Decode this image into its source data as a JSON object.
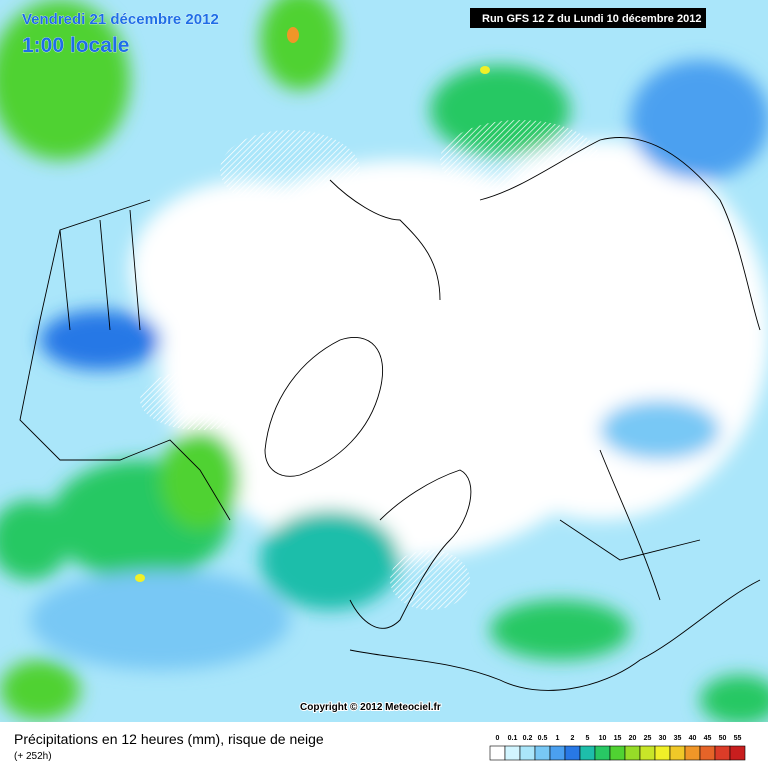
{
  "header": {
    "date": "Vendredi 21 décembre 2012",
    "time": "1:00 locale",
    "run": "Run GFS 12 Z du Lundi 10 décembre 2012"
  },
  "copyright": "Copyright © 2012 Meteociel.fr",
  "footer": {
    "title": "Précipitations en 12 heures (mm), risque de neige",
    "lead": "(+ 252h)"
  },
  "legend": {
    "labels": [
      0,
      0.1,
      0.2,
      0.5,
      1,
      2,
      5,
      10,
      15,
      20,
      25,
      30,
      35,
      40,
      45,
      50,
      55
    ],
    "colors": [
      "#ffffff",
      "#d2f5ff",
      "#aae6fa",
      "#78c8f5",
      "#4ba0f0",
      "#2878e6",
      "#1ebeaa",
      "#28c864",
      "#50d232",
      "#96dc28",
      "#c8e628",
      "#f0f028",
      "#f0c828",
      "#f09628",
      "#e66428",
      "#dc3c28",
      "#c81e1e"
    ]
  }
}
